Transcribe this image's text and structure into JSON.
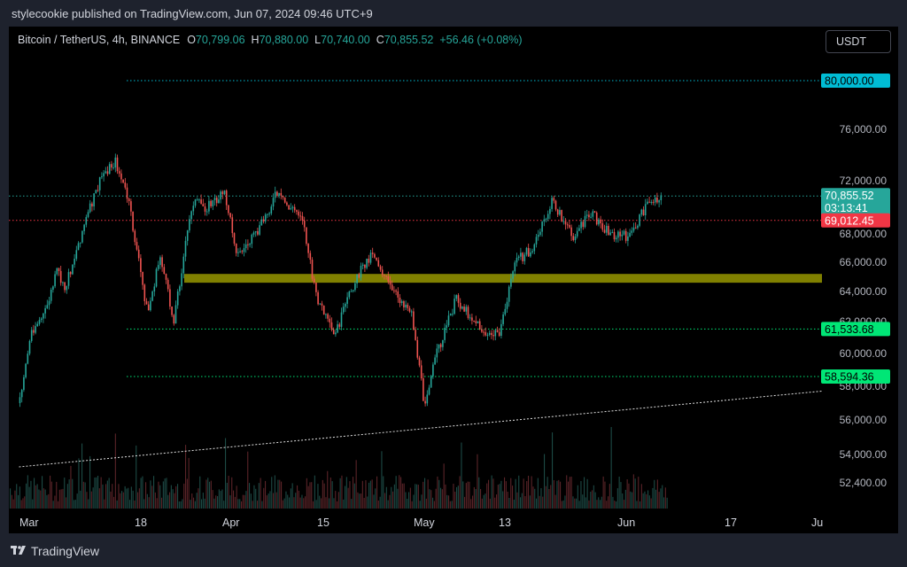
{
  "header": {
    "publisher_text": "stylecookie published on TradingView.com, Jun 07, 2024 09:46 UTC+9"
  },
  "legend": {
    "symbol": "Bitcoin / TetherUS, 4h, BINANCE",
    "open_label": "O",
    "open": "70,799.06",
    "high_label": "H",
    "high": "70,880.00",
    "low_label": "L",
    "low": "70,740.00",
    "close_label": "C",
    "close": "70,855.52",
    "change": "+56.46 (+0.08%)"
  },
  "currency": "USDT",
  "footer": {
    "brand": "TradingView"
  },
  "colors": {
    "up": "#26a69a",
    "down": "#ef5350",
    "zone": "#808000",
    "cyan_line": "#00bcd4",
    "green_line": "#00e676",
    "red_line": "#f23645"
  },
  "chart_data": {
    "type": "candlestick",
    "y_tick_labels": [
      "76,000.00",
      "72,000.00",
      "68,000.00",
      "66,000.00",
      "64,000.00",
      "62,000.00",
      "60,000.00",
      "58,000.00",
      "56,000.00",
      "54,000.00",
      "52,400.00"
    ],
    "x_tick_labels": [
      "Mar",
      "18",
      "Apr",
      "15",
      "May",
      "13",
      "Jun",
      "17",
      "Ju"
    ],
    "price_tags": [
      {
        "label": "80,000.00",
        "value": 80000,
        "color": "#00bcd4",
        "text_color": "#000000"
      },
      {
        "label": "70,855.52",
        "value": 70855.52,
        "color": "#26a69a",
        "text_color": "#ffffff",
        "sub": "03:13:41"
      },
      {
        "label": "69,012.45",
        "value": 69012.45,
        "color": "#f23645",
        "text_color": "#ffffff"
      },
      {
        "label": "61,533.68",
        "value": 61533.68,
        "color": "#00e676",
        "text_color": "#000000"
      },
      {
        "label": "58,594.36",
        "value": 58594.36,
        "color": "#00e676",
        "text_color": "#000000"
      }
    ],
    "zone": {
      "low": 64600,
      "high": 65200
    },
    "trendline": [
      {
        "date": "2024-02-28",
        "price": 53300
      },
      {
        "date": "2024-06-26",
        "price": 57500
      }
    ],
    "close_path": [
      [
        "2024-02-28",
        57000
      ],
      [
        "2024-03-01",
        61500
      ],
      [
        "2024-03-03",
        62500
      ],
      [
        "2024-03-05",
        65500
      ],
      [
        "2024-03-06",
        64000
      ],
      [
        "2024-03-09",
        68500
      ],
      [
        "2024-03-12",
        72500
      ],
      [
        "2024-03-14",
        73500
      ],
      [
        "2024-03-16",
        70500
      ],
      [
        "2024-03-19",
        62500
      ],
      [
        "2024-03-21",
        66500
      ],
      [
        "2024-03-23",
        62000
      ],
      [
        "2024-03-26",
        70500
      ],
      [
        "2024-03-28",
        70000
      ],
      [
        "2024-03-31",
        71000
      ],
      [
        "2024-04-02",
        66500
      ],
      [
        "2024-04-05",
        68000
      ],
      [
        "2024-04-08",
        71000
      ],
      [
        "2024-04-10",
        70000
      ],
      [
        "2024-04-12",
        69500
      ],
      [
        "2024-04-14",
        64000
      ],
      [
        "2024-04-17",
        61000
      ],
      [
        "2024-04-20",
        64500
      ],
      [
        "2024-04-23",
        66800
      ],
      [
        "2024-04-26",
        64000
      ],
      [
        "2024-04-29",
        62800
      ],
      [
        "2024-05-01",
        57000
      ],
      [
        "2024-05-03",
        60000
      ],
      [
        "2024-05-06",
        63500
      ],
      [
        "2024-05-09",
        62000
      ],
      [
        "2024-05-11",
        61000
      ],
      [
        "2024-05-13",
        61500
      ],
      [
        "2024-05-15",
        66000
      ],
      [
        "2024-05-18",
        67000
      ],
      [
        "2024-05-21",
        70500
      ],
      [
        "2024-05-24",
        67800
      ],
      [
        "2024-05-27",
        69500
      ],
      [
        "2024-05-30",
        68000
      ],
      [
        "2024-06-02",
        67800
      ],
      [
        "2024-06-05",
        70500
      ],
      [
        "2024-06-07",
        70855
      ]
    ]
  }
}
